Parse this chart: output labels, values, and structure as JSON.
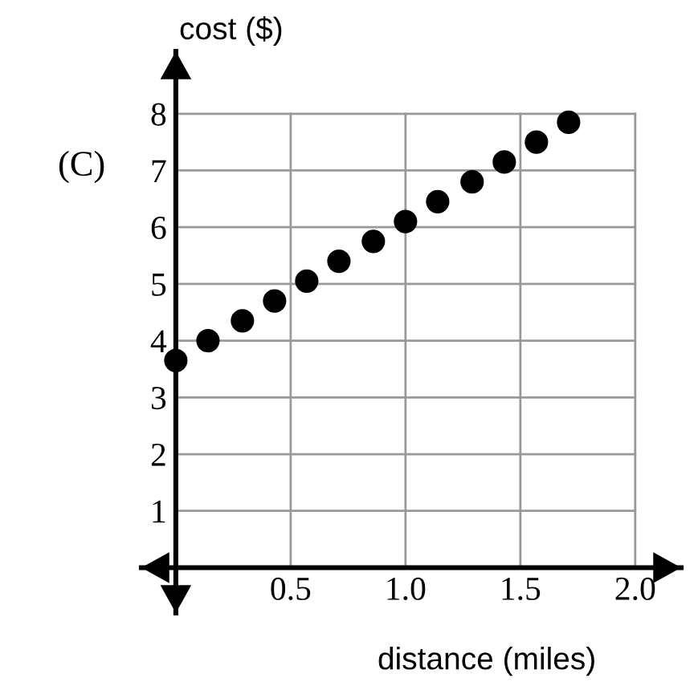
{
  "chart_data": {
    "type": "scatter",
    "xlabel": "distance (miles)",
    "ylabel": "cost ($)",
    "annotations": [
      "(C)"
    ],
    "x": [
      0,
      0.14,
      0.29,
      0.43,
      0.57,
      0.71,
      0.86,
      1.0,
      1.14,
      1.29,
      1.43,
      1.57,
      1.71
    ],
    "series": [
      {
        "color": "#000000",
        "values": [
          3.65,
          4.0,
          4.35,
          4.7,
          5.05,
          5.4,
          5.75,
          6.1,
          6.45,
          6.8,
          7.15,
          7.5,
          7.85
        ]
      }
    ],
    "marker": "circle",
    "grid": true,
    "xlim": [
      -0.15,
      2.2
    ],
    "ylim": [
      -0.8,
      9.1
    ],
    "xticks": [
      {
        "value": 0.5,
        "label": "0.5"
      },
      {
        "value": 1,
        "label": "1.0"
      },
      {
        "value": 1.5,
        "label": "1.5"
      },
      {
        "value": 2,
        "label": "2.0"
      }
    ],
    "yticks": [
      1,
      2,
      3,
      4,
      5,
      6,
      7,
      8
    ]
  }
}
